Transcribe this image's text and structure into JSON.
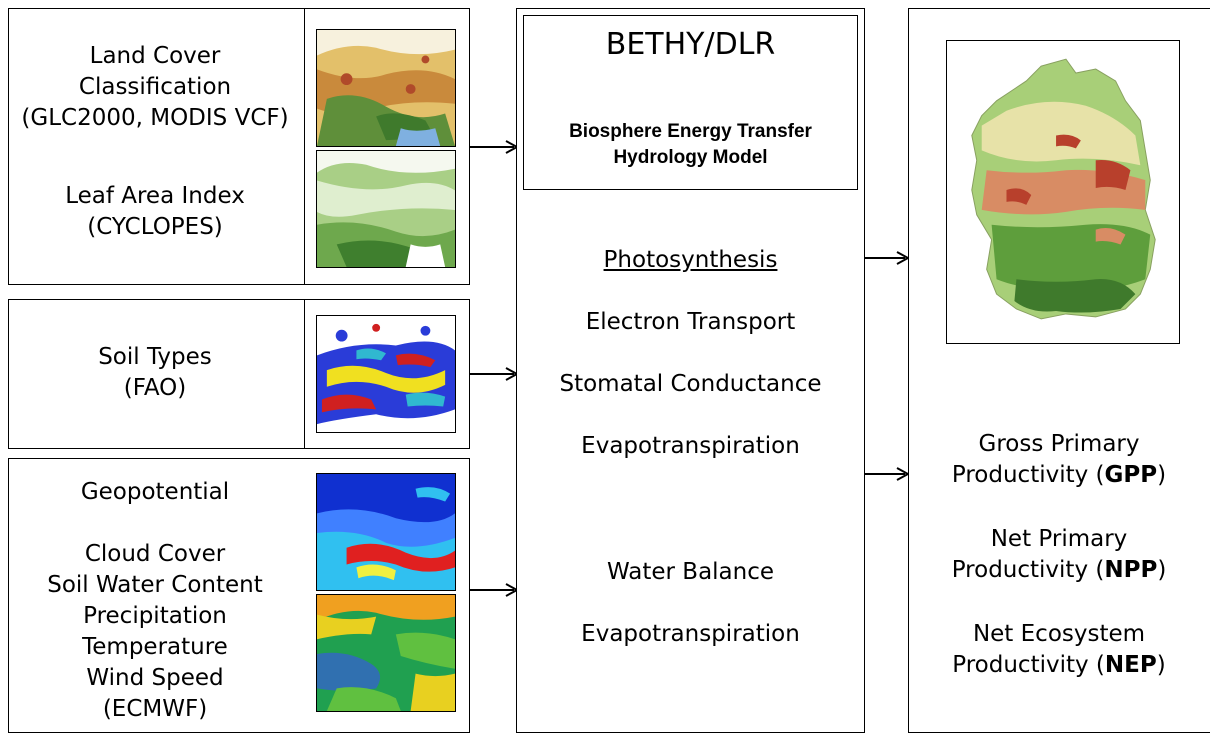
{
  "inputs": {
    "land_cover": {
      "lines": [
        "Land Cover",
        "Classification",
        "(GLC2000, MODIS VCF)"
      ]
    },
    "lai": {
      "lines": [
        "Leaf Area Index",
        "(CYCLOPES)"
      ]
    },
    "soil": {
      "lines": [
        "Soil Types",
        "(FAO)"
      ]
    },
    "meteo": {
      "line1": "Geopotential",
      "lines": [
        "Cloud Cover",
        "Soil Water Content",
        "Precipitation",
        "Temperature",
        "Wind Speed",
        "(ECMWF)"
      ]
    }
  },
  "model": {
    "title": "BETHY/DLR",
    "subtitle_lines": [
      "Biosphere Energy Transfer",
      "Hydrology Model"
    ],
    "photosynthesis": "Photosynthesis",
    "electron_transport": "Electron Transport",
    "stomatal": "Stomatal Conductance",
    "evapo1": "Evapotranspiration",
    "water_balance": "Water Balance",
    "evapo2": "Evapotranspiration"
  },
  "outputs": {
    "gpp": {
      "line1": "Gross Primary",
      "prefix": "Productivity (",
      "abbr": "GPP",
      "suffix": ")"
    },
    "npp": {
      "line1": "Net Primary",
      "prefix": "Productivity (",
      "abbr": "NPP",
      "suffix": ")"
    },
    "nep": {
      "line1": "Net Ecosystem",
      "prefix": "Productivity (",
      "abbr": "NEP",
      "suffix": ")"
    }
  },
  "colors": {
    "land_cover": [
      "#e8c46a",
      "#c98a3c",
      "#5f8f3a",
      "#3f7a2c",
      "#b04a2a"
    ],
    "lai": [
      "#dfeecf",
      "#a9cf86",
      "#6ea84d",
      "#3f7f2e"
    ],
    "soil": [
      "#2a3cd8",
      "#f0e020",
      "#d02020",
      "#30b8d0",
      "#ffffff"
    ],
    "geopotential": [
      "#1030d0",
      "#4080ff",
      "#30c0f0",
      "#e02020",
      "#f0f040"
    ],
    "meteo2": [
      "#20a050",
      "#60c040",
      "#e8d020",
      "#f0a020",
      "#3070b0"
    ],
    "germany": [
      "#5e9e3c",
      "#a8cf78",
      "#e7e2a8",
      "#d88c64",
      "#b8402c"
    ]
  }
}
